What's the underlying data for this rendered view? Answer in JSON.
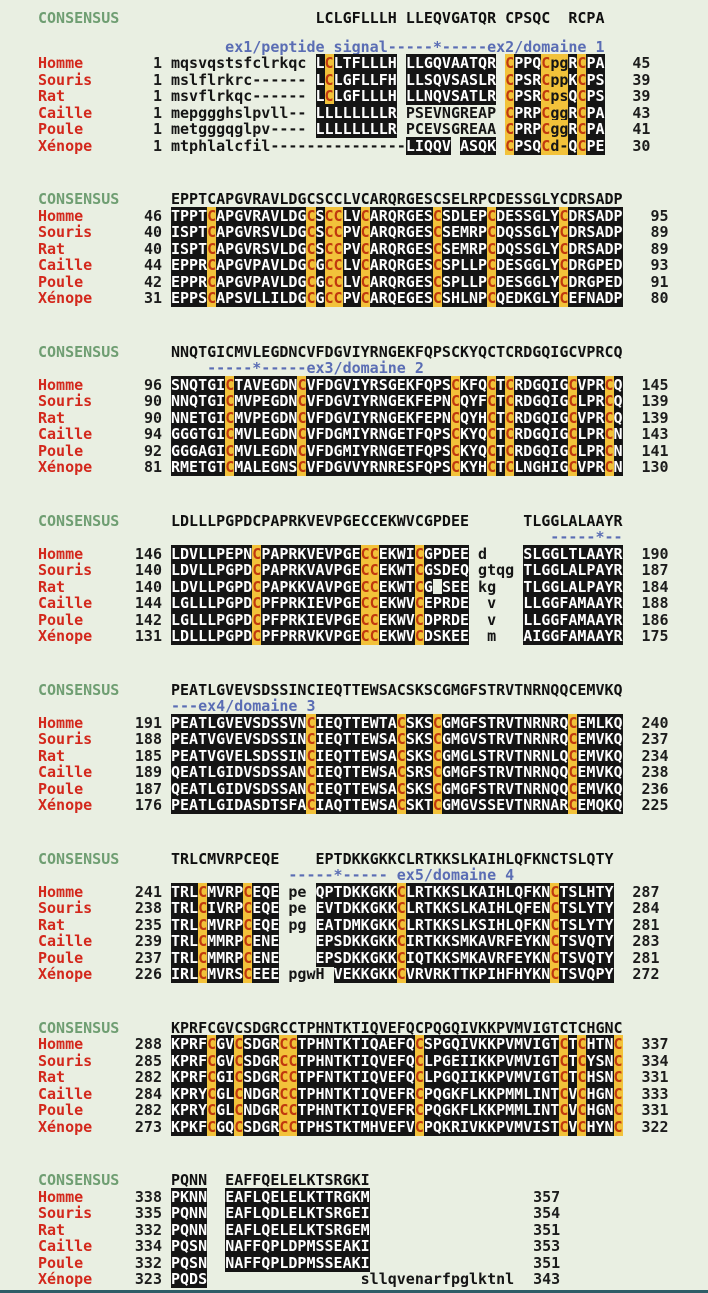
{
  "colors": {
    "background": "#e9efe2",
    "species_name": "#d3281c",
    "consensus_label": "#6f9e72",
    "annotation": "#5a6db4",
    "box_bg": "#151515",
    "box_fg": "#ffffff",
    "cysteine_bg": "#f2c23a",
    "cysteine_fg": "#c0390e",
    "bottom_bar": "#2e5d68"
  },
  "alignment": {
    "species": [
      "Homme",
      "Souris",
      "Rat",
      "Caille",
      "Poule",
      "Xénope"
    ],
    "blocks": [
      {
        "consensus_label": "CONSENSUS",
        "consensus": "                LCLGFLLLH LLEQVGATQR CPSQC  RCPA",
        "annotation": "      ex1/peptide signal-----*-----ex2/domaine 1",
        "annotation_top_gap": true,
        "rows": [
          {
            "name": "Homme",
            "start": "1",
            "end": "45",
            "segs": [
              [
                "mqsvqstsfclrkqc ",
                "p"
              ],
              [
                "LCLTFLLLH",
                "b"
              ],
              [
                " ",
                "p"
              ],
              [
                "LLGQVAATQR",
                "b"
              ],
              [
                " ",
                "p"
              ],
              [
                "CPPQCpgRCPA",
                "b"
              ]
            ]
          },
          {
            "name": "Souris",
            "start": "1",
            "end": "39",
            "segs": [
              [
                "mslflrkrc------ ",
                "p"
              ],
              [
                "LCLGFLLFH",
                "b"
              ],
              [
                " ",
                "p"
              ],
              [
                "LLSQVSASLR",
                "b"
              ],
              [
                " ",
                "p"
              ],
              [
                "CPSRCppKCPS",
                "b"
              ]
            ]
          },
          {
            "name": "Rat",
            "start": "1",
            "end": "39",
            "segs": [
              [
                "msvflrkqc------ ",
                "p"
              ],
              [
                "LCLGFLLLH",
                "b"
              ],
              [
                " ",
                "p"
              ],
              [
                "LLNQVSATLR",
                "b"
              ],
              [
                " ",
                "p"
              ],
              [
                "CPSRCpsQCPS",
                "b"
              ]
            ]
          },
          {
            "name": "Caille",
            "start": "1",
            "end": "43",
            "segs": [
              [
                "mepggghslpvll-- ",
                "p"
              ],
              [
                "LLLLLLLLR",
                "b"
              ],
              [
                " ",
                "p"
              ],
              [
                "PSEVNGREAP",
                "p"
              ],
              [
                " ",
                "p"
              ],
              [
                "CPRPCggRCPA",
                "b"
              ]
            ]
          },
          {
            "name": "Poule",
            "start": "1",
            "end": "41",
            "segs": [
              [
                "metgggqglpv---- ",
                "p"
              ],
              [
                "LLLLLLLLR",
                "b"
              ],
              [
                " ",
                "p"
              ],
              [
                "PCEVSGREAA",
                "p"
              ],
              [
                " ",
                "p"
              ],
              [
                "CPRPCggRCPA",
                "b"
              ]
            ]
          },
          {
            "name": "Xénope",
            "start": "1",
            "end": "30",
            "segs": [
              [
                "mtphlalcfil---------------",
                "p"
              ],
              [
                "LIQQV",
                "b"
              ],
              [
                " ",
                "p"
              ],
              [
                "ASQK",
                "b"
              ],
              [
                " ",
                "p"
              ],
              [
                "CPSQCd-QCPE",
                "b"
              ]
            ]
          }
        ]
      },
      {
        "consensus_label": "CONSENSUS",
        "consensus": "EPPTCAPGVRAVLDGCSCCLVCARQRGESCSELRPCDESSGLYCDRSADP",
        "annotation": null,
        "rows": [
          {
            "name": "Homme",
            "start": "46",
            "end": "95",
            "segs": [
              [
                "TPPTCAPGVRAVLDGCSCCLVCARQRGESCSDLEPCDESSGLYCDRSADP",
                "b"
              ]
            ]
          },
          {
            "name": "Souris",
            "start": "40",
            "end": "89",
            "segs": [
              [
                "ISPTCAPGVRSVLDGCSCCPVCARQRGESCSEMRPCDQSSGLYCDRSADP",
                "b"
              ]
            ]
          },
          {
            "name": "Rat",
            "start": "40",
            "end": "89",
            "segs": [
              [
                "ISPTCAPGVRSVLDGCSCCPVCARQRGESCSEMRPCDQSSGLYCDRSADP",
                "b"
              ]
            ]
          },
          {
            "name": "Caille",
            "start": "44",
            "end": "93",
            "segs": [
              [
                "EPPRCAPGVPAVLDGCGCCLVCARQRGESCSPLLPCDESGGLYCDRGPED",
                "b"
              ]
            ]
          },
          {
            "name": "Poule",
            "start": "42",
            "end": "91",
            "segs": [
              [
                "EPPRCAPGVPAVLDGCGCCLVCARQRGESCSPLLPCDESGGLYCDRGPED",
                "b"
              ]
            ]
          },
          {
            "name": "Xénope",
            "start": "31",
            "end": "80",
            "segs": [
              [
                "EPPSCAPSVLLILDGCGCCPVCARQEGESCSHLNPCQEDKGLYCEFNADP",
                "b"
              ]
            ]
          }
        ]
      },
      {
        "consensus_label": "CONSENSUS",
        "consensus": "NNQTGICMVLEGDNCVFDGVIYRNGEKFQPSCKYQCTCRDGQIGCVPRCQ",
        "annotation": "    -----*-----ex3/domaine 2",
        "rows": [
          {
            "name": "Homme",
            "start": "96",
            "end": "145",
            "segs": [
              [
                "SNQTGICTAVEGDNCVFDGVIYRSGEKFQPSCKFQCTCRDGQIGCVPRCQ",
                "b"
              ]
            ]
          },
          {
            "name": "Souris",
            "start": "90",
            "end": "139",
            "segs": [
              [
                "NNQTGICMVPEGDNCVFDGVIYRNGEKFEPNCQYFCTCRDGQIGCLPRCQ",
                "b"
              ]
            ]
          },
          {
            "name": "Rat",
            "start": "90",
            "end": "139",
            "segs": [
              [
                "NNETGICMVPEGDNCVFDGVIYRNGEKFEPNCQYHCTCRDGQIGCVPRCQ",
                "b"
              ]
            ]
          },
          {
            "name": "Caille",
            "start": "94",
            "end": "143",
            "segs": [
              [
                "GGGTGICMVLEGDNCVFDGMIYRNGETFQPSCKYQCTCRDGQIGCLPRCN",
                "b"
              ]
            ]
          },
          {
            "name": "Poule",
            "start": "92",
            "end": "141",
            "segs": [
              [
                "GGGAGICMVLEGDNCVFDGMIYRNGETFQPSCKYQCTCRDGQIGCLPRCN",
                "b"
              ]
            ]
          },
          {
            "name": "Xénope",
            "start": "81",
            "end": "130",
            "segs": [
              [
                "RMETGTCMALEGNSCVFDGVVYRNRESFQPSCKYHCTCLNGHIGCVPRCN",
                "b"
              ]
            ]
          }
        ]
      },
      {
        "consensus_label": "CONSENSUS",
        "consensus": "LDLLLPGPDCPAPRKVEVPGECCEKWVCGPDEE      TLGGLALAAYR",
        "annotation": "                                          -----*--",
        "rows": [
          {
            "name": "Homme",
            "start": "146",
            "end": "190",
            "segs": [
              [
                "LDVLLPEPNCPAPRKVEVPGECCEKWICGPDEE",
                "b"
              ],
              [
                " d    ",
                "p"
              ],
              [
                "SLGGLTLAAYR",
                "b"
              ]
            ]
          },
          {
            "name": "Souris",
            "start": "140",
            "end": "187",
            "segs": [
              [
                "LDVLLPGPDCPAPRKVAVPGECCEKWTCGSDEQ",
                "b"
              ],
              [
                " gtqg ",
                "p"
              ],
              [
                "TLGGLALPAYR",
                "b"
              ]
            ]
          },
          {
            "name": "Rat",
            "start": "140",
            "end": "184",
            "segs": [
              [
                "LDVLLPGPDCPAPKKVAVPGECCEKWTCG SEE",
                "b"
              ],
              [
                " kg   ",
                "p"
              ],
              [
                "TLGGLALPAYR",
                "b"
              ]
            ]
          },
          {
            "name": "Caille",
            "start": "144",
            "end": "188",
            "segs": [
              [
                "LGLLLPGPDCPFPRKIEVPGECCEKWVCEPRDE",
                "b"
              ],
              [
                "  v   ",
                "p"
              ],
              [
                "LLGGFAMAAYR",
                "b"
              ]
            ]
          },
          {
            "name": "Poule",
            "start": "142",
            "end": "186",
            "segs": [
              [
                "LGLLLPGPDCPFPRKIEVPGECCEKWVCDPRDE",
                "b"
              ],
              [
                "  v   ",
                "p"
              ],
              [
                "LLGGFAMAAYR",
                "b"
              ]
            ]
          },
          {
            "name": "Xénope",
            "start": "131",
            "end": "175",
            "segs": [
              [
                "LDLLLPGPDCPFPRRVKVPGECCEKWVCDSKEE",
                "b"
              ],
              [
                "  m   ",
                "p"
              ],
              [
                "AIGGFAMAAYR",
                "b"
              ]
            ]
          }
        ]
      },
      {
        "consensus_label": "CONSENSUS",
        "consensus": "PEATLGVEVSDSSINCIEQTTEWSACSKSCGMGFSTRVTNRNQQCEMVKQ",
        "annotation": "---ex4/domaine 3",
        "rows": [
          {
            "name": "Homme",
            "start": "191",
            "end": "240",
            "segs": [
              [
                "PEATLGVEVSDSSVNCIEQTTEWTACSKSCGMGFSTRVTNRNRQCEMLKQ",
                "b"
              ]
            ]
          },
          {
            "name": "Souris",
            "start": "188",
            "end": "237",
            "segs": [
              [
                "PEATVGVEVSDSSINCIEQTTEWSACSKSCGMGVSTRVTNRNRQCEMVKQ",
                "b"
              ]
            ]
          },
          {
            "name": "Rat",
            "start": "185",
            "end": "234",
            "segs": [
              [
                "PEATVGVELSDSSINCIEQTTEWSACSKSCGMGLSTRVTNRNLQCEMVKQ",
                "b"
              ]
            ]
          },
          {
            "name": "Caille",
            "start": "189",
            "end": "238",
            "segs": [
              [
                "QEATLGIDVSDSSANCIEQTTEWSACSRSCGMGFSTRVTNRNQQCEMVKQ",
                "b"
              ]
            ]
          },
          {
            "name": "Poule",
            "start": "187",
            "end": "236",
            "segs": [
              [
                "QEATLGIDVSDSSANCIEQTTEWSACSKSCGMGFSTRVTNRNQQCEMVKQ",
                "b"
              ]
            ]
          },
          {
            "name": "Xénope",
            "start": "176",
            "end": "225",
            "segs": [
              [
                "PEATLGIDASDTSFACIAQTTEWSACSKTCGMGVSSEVTNRNARCEMQKQ",
                "b"
              ]
            ]
          }
        ]
      },
      {
        "consensus_label": "CONSENSUS",
        "consensus": "TRLCMVRPCEQE    EPTDKKGKKCLRTKKSLKAIHLQFKNCTSLQTY",
        "annotation": "             -----*----- ex5/domaine 4",
        "rows": [
          {
            "name": "Homme",
            "start": "241",
            "end": "287",
            "segs": [
              [
                "TRLCMVRPCEQE",
                "b"
              ],
              [
                " pe ",
                "p"
              ],
              [
                "QPTDKKGKKCLRTKKSLKAIHLQFKNCTSLHTY",
                "b"
              ]
            ]
          },
          {
            "name": "Souris",
            "start": "238",
            "end": "284",
            "segs": [
              [
                "TRLCIVRPCEQE",
                "b"
              ],
              [
                " pe ",
                "p"
              ],
              [
                "EVTDKKGKKCLRTKKSLKAIHLQFENCTSLYTY",
                "b"
              ]
            ]
          },
          {
            "name": "Rat",
            "start": "235",
            "end": "281",
            "segs": [
              [
                "TRLCMVRPCEQE",
                "b"
              ],
              [
                " pg ",
                "p"
              ],
              [
                "EATDMKGKKCLRTKKSLKSIHLQFKNCTSLYTY",
                "b"
              ]
            ]
          },
          {
            "name": "Caille",
            "start": "239",
            "end": "283",
            "segs": [
              [
                "TRLCMMRPCENE",
                "b"
              ],
              [
                "    ",
                "p"
              ],
              [
                "EPSDKKGKKCIRTKKSMKAVRFEYKNCTSVQTY",
                "b"
              ]
            ]
          },
          {
            "name": "Poule",
            "start": "237",
            "end": "281",
            "segs": [
              [
                "TRLCMMRPCENE",
                "b"
              ],
              [
                "    ",
                "p"
              ],
              [
                "EPSDKKGKKCIQTKKSMKAVRFEYKNCTSVQTY",
                "b"
              ]
            ]
          },
          {
            "name": "Xénope",
            "start": "226",
            "end": "272",
            "segs": [
              [
                "IRLCMVRSCEEE",
                "b"
              ],
              [
                " ",
                "p"
              ],
              [
                "pgwH",
                "p"
              ],
              [
                " ",
                "p"
              ],
              [
                "VEKKGKKCVRVRKTTKPIHFHYKNCTSVQPY",
                "b"
              ]
            ]
          }
        ]
      },
      {
        "consensus_label": "CONSENSUS",
        "consensus": "KPRFCGVCSDGRCCTPHNTKTIQVEFQCPQGQIVKKPVMVIGTCTCHGNC",
        "annotation": null,
        "rows": [
          {
            "name": "Homme",
            "start": "288",
            "end": "337",
            "segs": [
              [
                "KPRFCGVCSDGRCCTPHNTKTIQAEFQCSPGQIVKKPVMVIGTCTCHTNC",
                "b"
              ]
            ]
          },
          {
            "name": "Souris",
            "start": "285",
            "end": "334",
            "segs": [
              [
                "KPRFCGVCSDGRCCTPHNTKTIQVEFQCLPGEIIKKPVMVIGTCTCYSNC",
                "b"
              ]
            ]
          },
          {
            "name": "Rat",
            "start": "282",
            "end": "331",
            "segs": [
              [
                "KPRFCGICSDGRCCTPFNTKTIQVEFQCLPGQIIKKPVMVIGTCTCHSNC",
                "b"
              ]
            ]
          },
          {
            "name": "Caille",
            "start": "284",
            "end": "333",
            "segs": [
              [
                "KPRYCGLCNDGRCCTPHNTKTIQVEFRCPQGKFLKKPMMLINTCVCHGNC",
                "b"
              ]
            ]
          },
          {
            "name": "Poule",
            "start": "282",
            "end": "331",
            "segs": [
              [
                "KPRYCGLCNDGRCCTPHNTKTIQVEFRCPQGKFLKKPMMLINTCVCHGNC",
                "b"
              ]
            ]
          },
          {
            "name": "Xénope",
            "start": "273",
            "end": "322",
            "segs": [
              [
                "KPKFCGQCSDGRCCTPHSTKTMHVEFVCPQKRIVKKPVMVISTCVCHYNC",
                "b"
              ]
            ]
          }
        ]
      },
      {
        "consensus_label": "CONSENSUS",
        "consensus": "PQNN  EAFFQELELKTSRGKI",
        "annotation": null,
        "rows": [
          {
            "name": "Homme",
            "start": "338",
            "end": "357",
            "segs": [
              [
                "PKNN",
                "b"
              ],
              [
                "  ",
                "p"
              ],
              [
                "EAFLQELELKTTRGKM",
                "b"
              ]
            ]
          },
          {
            "name": "Souris",
            "start": "335",
            "end": "354",
            "segs": [
              [
                "PQNN",
                "b"
              ],
              [
                "  ",
                "p"
              ],
              [
                "EAFLQDLELKTSRGEI",
                "b"
              ]
            ]
          },
          {
            "name": "Rat",
            "start": "332",
            "end": "351",
            "segs": [
              [
                "PQNN",
                "b"
              ],
              [
                "  ",
                "p"
              ],
              [
                "EAFLQELELKTSRGEM",
                "b"
              ]
            ]
          },
          {
            "name": "Caille",
            "start": "334",
            "end": "353",
            "segs": [
              [
                "PQSN",
                "b"
              ],
              [
                "  ",
                "p"
              ],
              [
                "NAFFQPLDPMSSEAKI",
                "b"
              ]
            ]
          },
          {
            "name": "Poule",
            "start": "332",
            "end": "351",
            "segs": [
              [
                "PQSN",
                "b"
              ],
              [
                "  ",
                "p"
              ],
              [
                "NAFFQPLDPMSSEAKI",
                "b"
              ]
            ]
          },
          {
            "name": "Xénope",
            "start": "323",
            "end": "343",
            "segs": [
              [
                "PQDS",
                "b"
              ],
              [
                "                 ",
                "p"
              ],
              [
                "sllqvenarfpglktnl",
                "p"
              ]
            ]
          }
        ]
      }
    ]
  }
}
